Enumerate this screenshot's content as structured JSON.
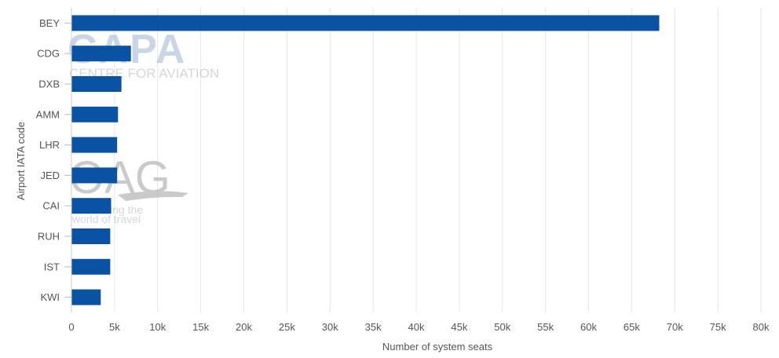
{
  "chart_data": {
    "type": "bar",
    "orientation": "horizontal",
    "categories": [
      "BEY",
      "CDG",
      "DXB",
      "AMM",
      "LHR",
      "JED",
      "CAI",
      "RUH",
      "IST",
      "KWI"
    ],
    "values": [
      68200,
      6900,
      5800,
      5400,
      5300,
      5300,
      4600,
      4500,
      4500,
      3400
    ],
    "xlabel": "Number of system seats",
    "ylabel": "Airport IATA code",
    "xlim": [
      0,
      80000
    ],
    "x_ticks": [
      0,
      5000,
      10000,
      15000,
      20000,
      25000,
      30000,
      35000,
      40000,
      45000,
      50000,
      55000,
      60000,
      65000,
      70000,
      75000,
      80000
    ],
    "x_tick_labels": [
      "0",
      "5k",
      "10k",
      "15k",
      "20k",
      "25k",
      "30k",
      "35k",
      "40k",
      "45k",
      "50k",
      "55k",
      "60k",
      "65k",
      "70k",
      "75k",
      "80k"
    ],
    "grid": "vertical",
    "legend": "none",
    "bar_color": "#0a52a3",
    "grid_color": "#e6e6e6"
  },
  "watermarks": {
    "capa_logo": "CAPA",
    "capa_tagline": "CENTRE FOR AVIATION",
    "oag_logo": "OAG",
    "oag_tagline_1": "ing the",
    "oag_tagline_2": "world of travel"
  }
}
